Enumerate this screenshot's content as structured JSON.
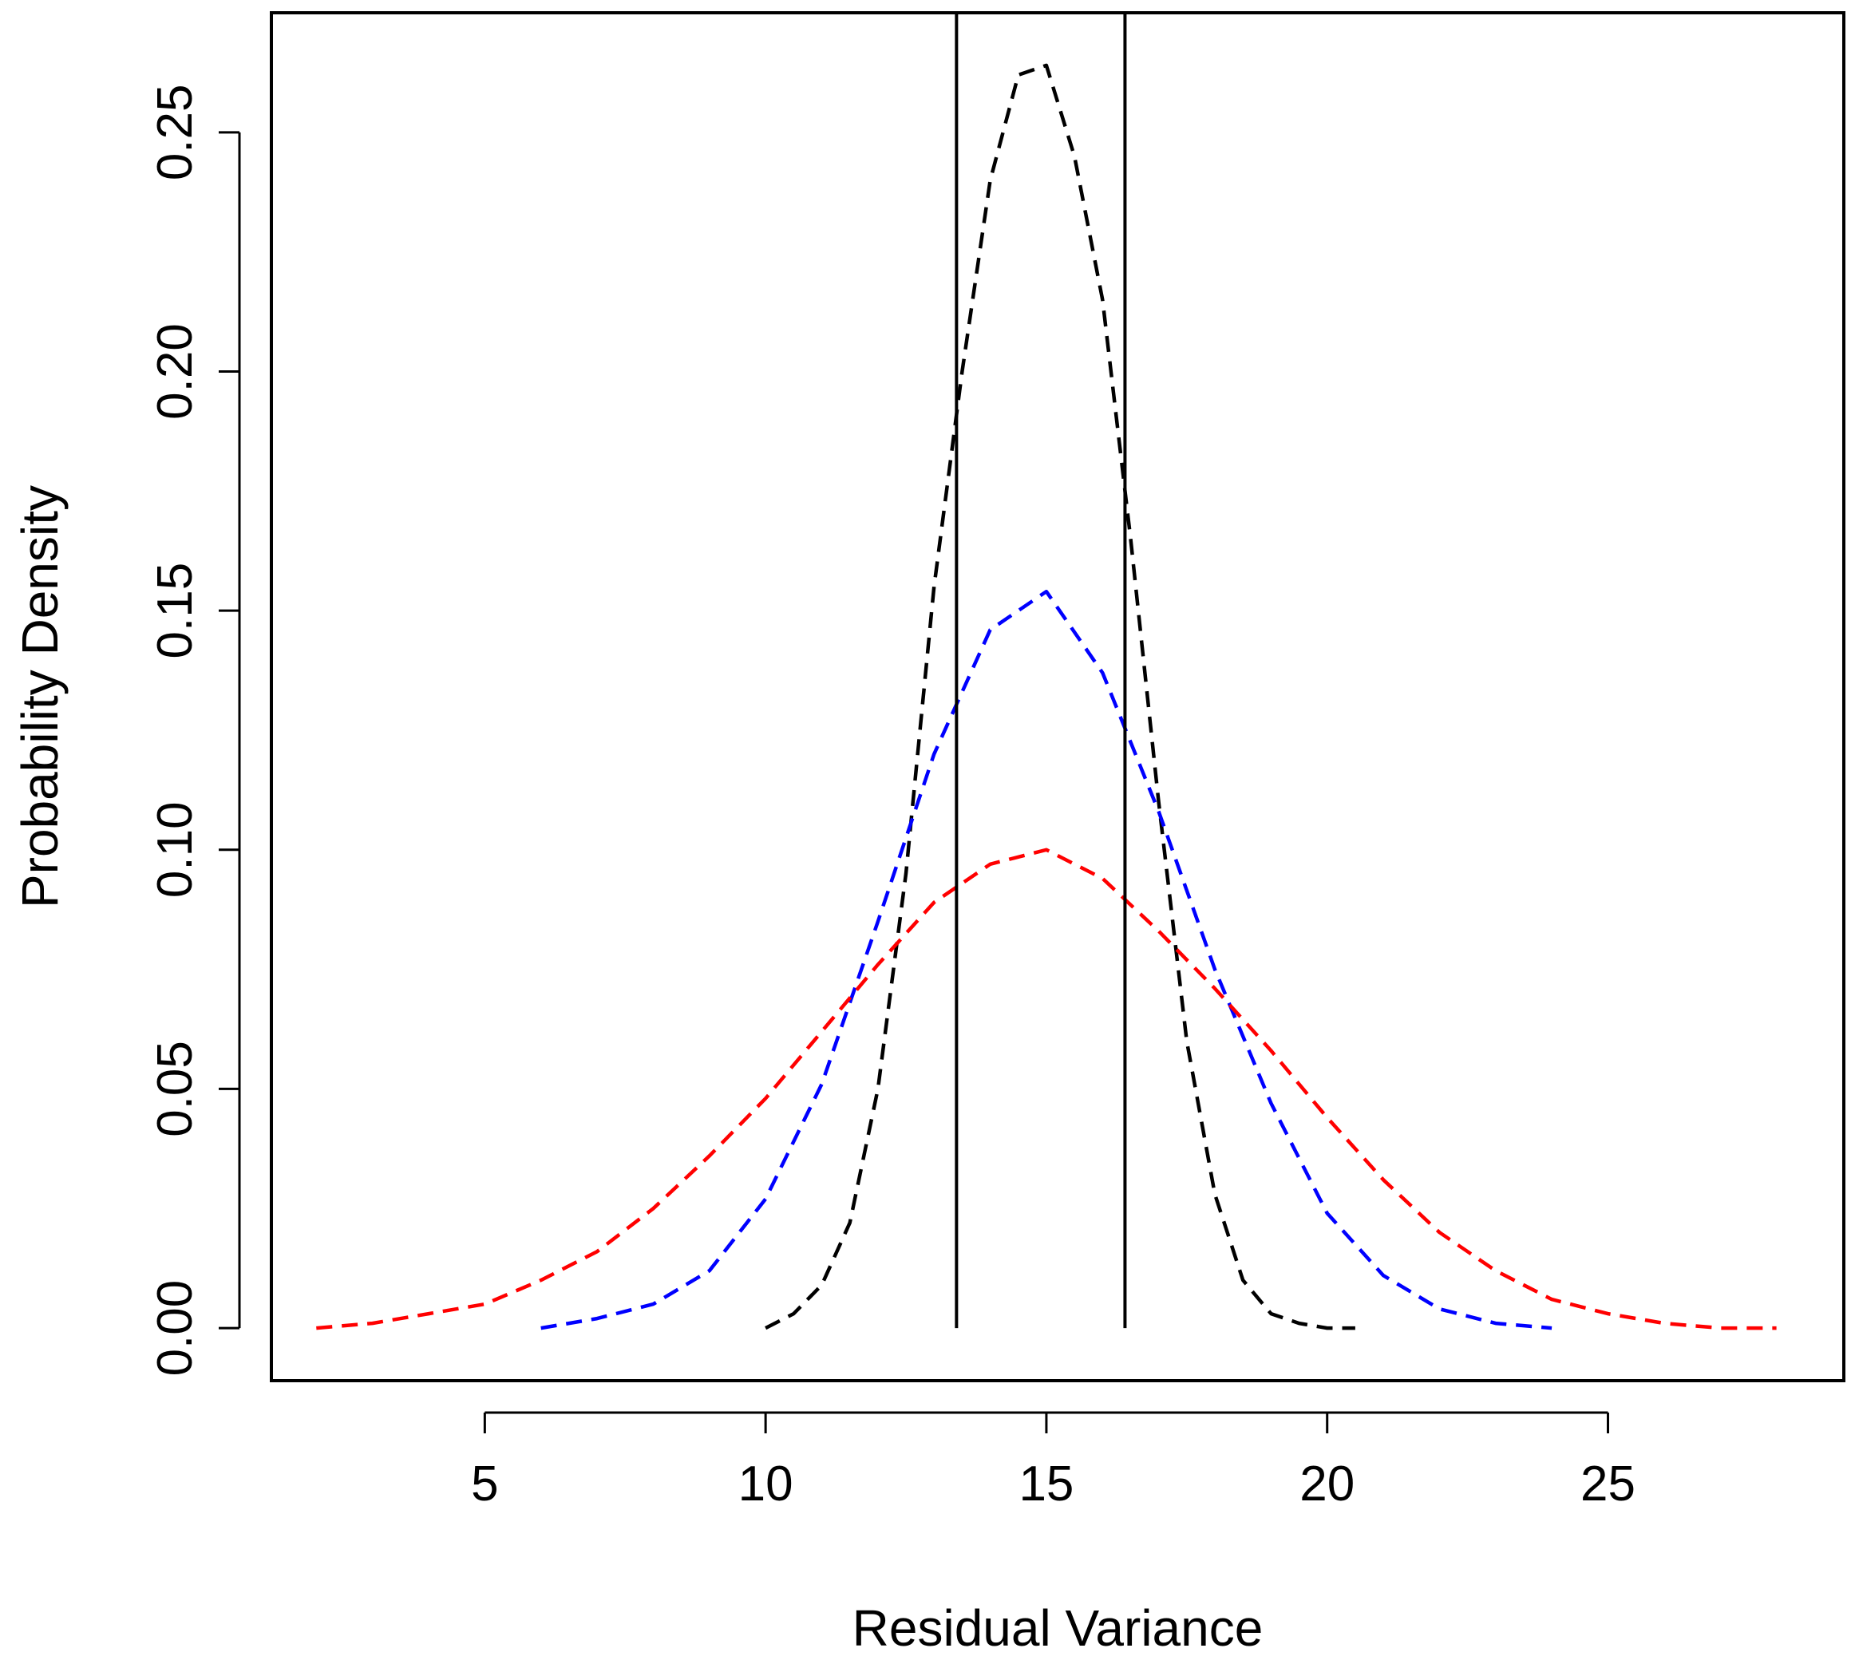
{
  "chart_data": {
    "type": "line",
    "title": "",
    "xlabel": "Residual Variance",
    "ylabel": "Probability Density",
    "xlim": [
      1.2,
      29.2
    ],
    "ylim": [
      -0.011,
      0.275
    ],
    "x_ticks": [
      5,
      10,
      15,
      20,
      25
    ],
    "x_tick_labels": [
      "5",
      "10",
      "15",
      "20",
      "25"
    ],
    "y_ticks": [
      0,
      0.05,
      0.1,
      0.15,
      0.2,
      0.25
    ],
    "y_tick_labels": [
      "0.00",
      "0.05",
      "0.10",
      "0.15",
      "0.20",
      "0.25"
    ],
    "grid": false,
    "legend": "none",
    "vlines": [
      {
        "x": 13.4,
        "color": "#000000",
        "style": "solid"
      },
      {
        "x": 16.4,
        "color": "#000000",
        "style": "solid"
      }
    ],
    "series": [
      {
        "name": "black-dashed",
        "color": "#000000",
        "style": "dashed",
        "x": [
          10,
          10.5,
          11,
          11.5,
          12,
          12.5,
          13,
          13.5,
          14,
          14.5,
          15,
          15.5,
          16,
          16.5,
          17,
          17.5,
          18,
          18.5,
          19,
          19.5,
          20,
          20.5
        ],
        "y": [
          0.0,
          0.003,
          0.009,
          0.022,
          0.05,
          0.095,
          0.155,
          0.2,
          0.24,
          0.262,
          0.264,
          0.245,
          0.215,
          0.165,
          0.11,
          0.06,
          0.028,
          0.01,
          0.003,
          0.001,
          0.0,
          0.0
        ]
      },
      {
        "name": "blue-dashed",
        "color": "#0000ff",
        "style": "dashed",
        "x": [
          6,
          7,
          8,
          9,
          10,
          11,
          12,
          13,
          14,
          15,
          16,
          17,
          18,
          19,
          20,
          21,
          22,
          23,
          24
        ],
        "y": [
          0.0,
          0.002,
          0.005,
          0.012,
          0.027,
          0.051,
          0.085,
          0.12,
          0.146,
          0.154,
          0.137,
          0.108,
          0.075,
          0.047,
          0.024,
          0.011,
          0.004,
          0.001,
          0.0
        ]
      },
      {
        "name": "red-dashed",
        "color": "#ff0000",
        "style": "dashed",
        "x": [
          2,
          3,
          4,
          5,
          6,
          7,
          8,
          9,
          10,
          11,
          12,
          13,
          14,
          15,
          16,
          17,
          18,
          19,
          20,
          21,
          22,
          23,
          24,
          25,
          26,
          27,
          28
        ],
        "y": [
          0.0,
          0.001,
          0.003,
          0.005,
          0.01,
          0.016,
          0.025,
          0.036,
          0.048,
          0.062,
          0.076,
          0.089,
          0.097,
          0.1,
          0.094,
          0.083,
          0.071,
          0.058,
          0.044,
          0.031,
          0.02,
          0.012,
          0.006,
          0.003,
          0.001,
          0.0,
          0.0
        ]
      }
    ]
  }
}
